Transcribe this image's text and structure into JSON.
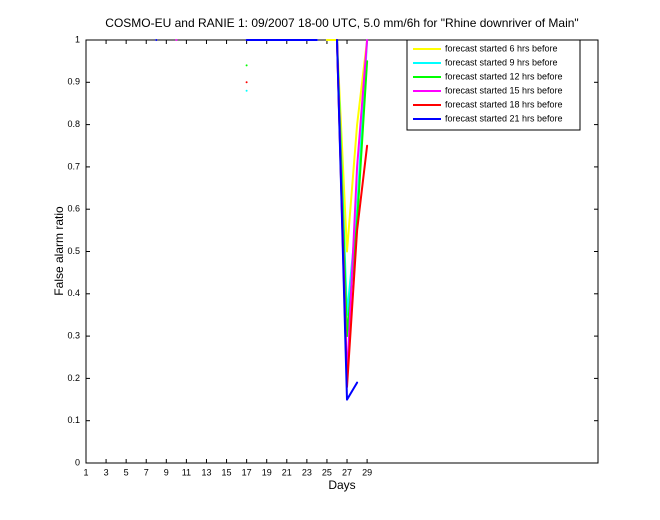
{
  "chart_data": {
    "type": "line",
    "title": "COSMO-EU and RANIE 1: 09/2007 18-00 UTC, 5.0 mm/6h for \"Rhine downriver of Main\"",
    "x_label": "Days",
    "y_label": "False alarm ratio",
    "x": [
      8,
      10,
      17,
      24,
      25,
      26,
      27,
      28,
      29
    ],
    "series": [
      {
        "name": "forecast started 6 hrs before",
        "color": "#ffff00",
        "values": [
          null,
          null,
          null,
          null,
          1,
          1,
          0.5,
          0.8,
          1
        ]
      },
      {
        "name": "forecast started 9 hrs before",
        "color": "#00ffff",
        "values": [
          null,
          null,
          0.88,
          null,
          null,
          1,
          0.35,
          0.6,
          1
        ]
      },
      {
        "name": "forecast started 12 hrs before",
        "color": "#00ff00",
        "values": [
          null,
          null,
          0.94,
          null,
          null,
          1,
          0.3,
          0.57,
          0.95
        ]
      },
      {
        "name": "forecast started 15 hrs before",
        "color": "#ff00ff",
        "values": [
          null,
          1,
          null,
          null,
          null,
          1,
          0.2,
          0.7,
          1
        ]
      },
      {
        "name": "forecast started 18 hrs before",
        "color": "#ff0000",
        "values": [
          null,
          null,
          0.9,
          null,
          null,
          1,
          0.18,
          0.55,
          0.75
        ]
      },
      {
        "name": "forecast started 21 hrs before",
        "color": "#0000ff",
        "values": [
          1,
          null,
          1,
          1,
          null,
          1,
          0.15,
          0.19,
          null
        ]
      }
    ],
    "xlim": [
      1,
      52
    ],
    "xticks": [
      1,
      3,
      5,
      7,
      9,
      11,
      13,
      15,
      17,
      19,
      21,
      23,
      25,
      27,
      29
    ],
    "ylim": [
      0,
      1
    ],
    "yticks": [
      0,
      0.1,
      0.2,
      0.3,
      0.4,
      0.5,
      0.6,
      0.7,
      0.8,
      0.9,
      1
    ],
    "legend": "top-right"
  }
}
